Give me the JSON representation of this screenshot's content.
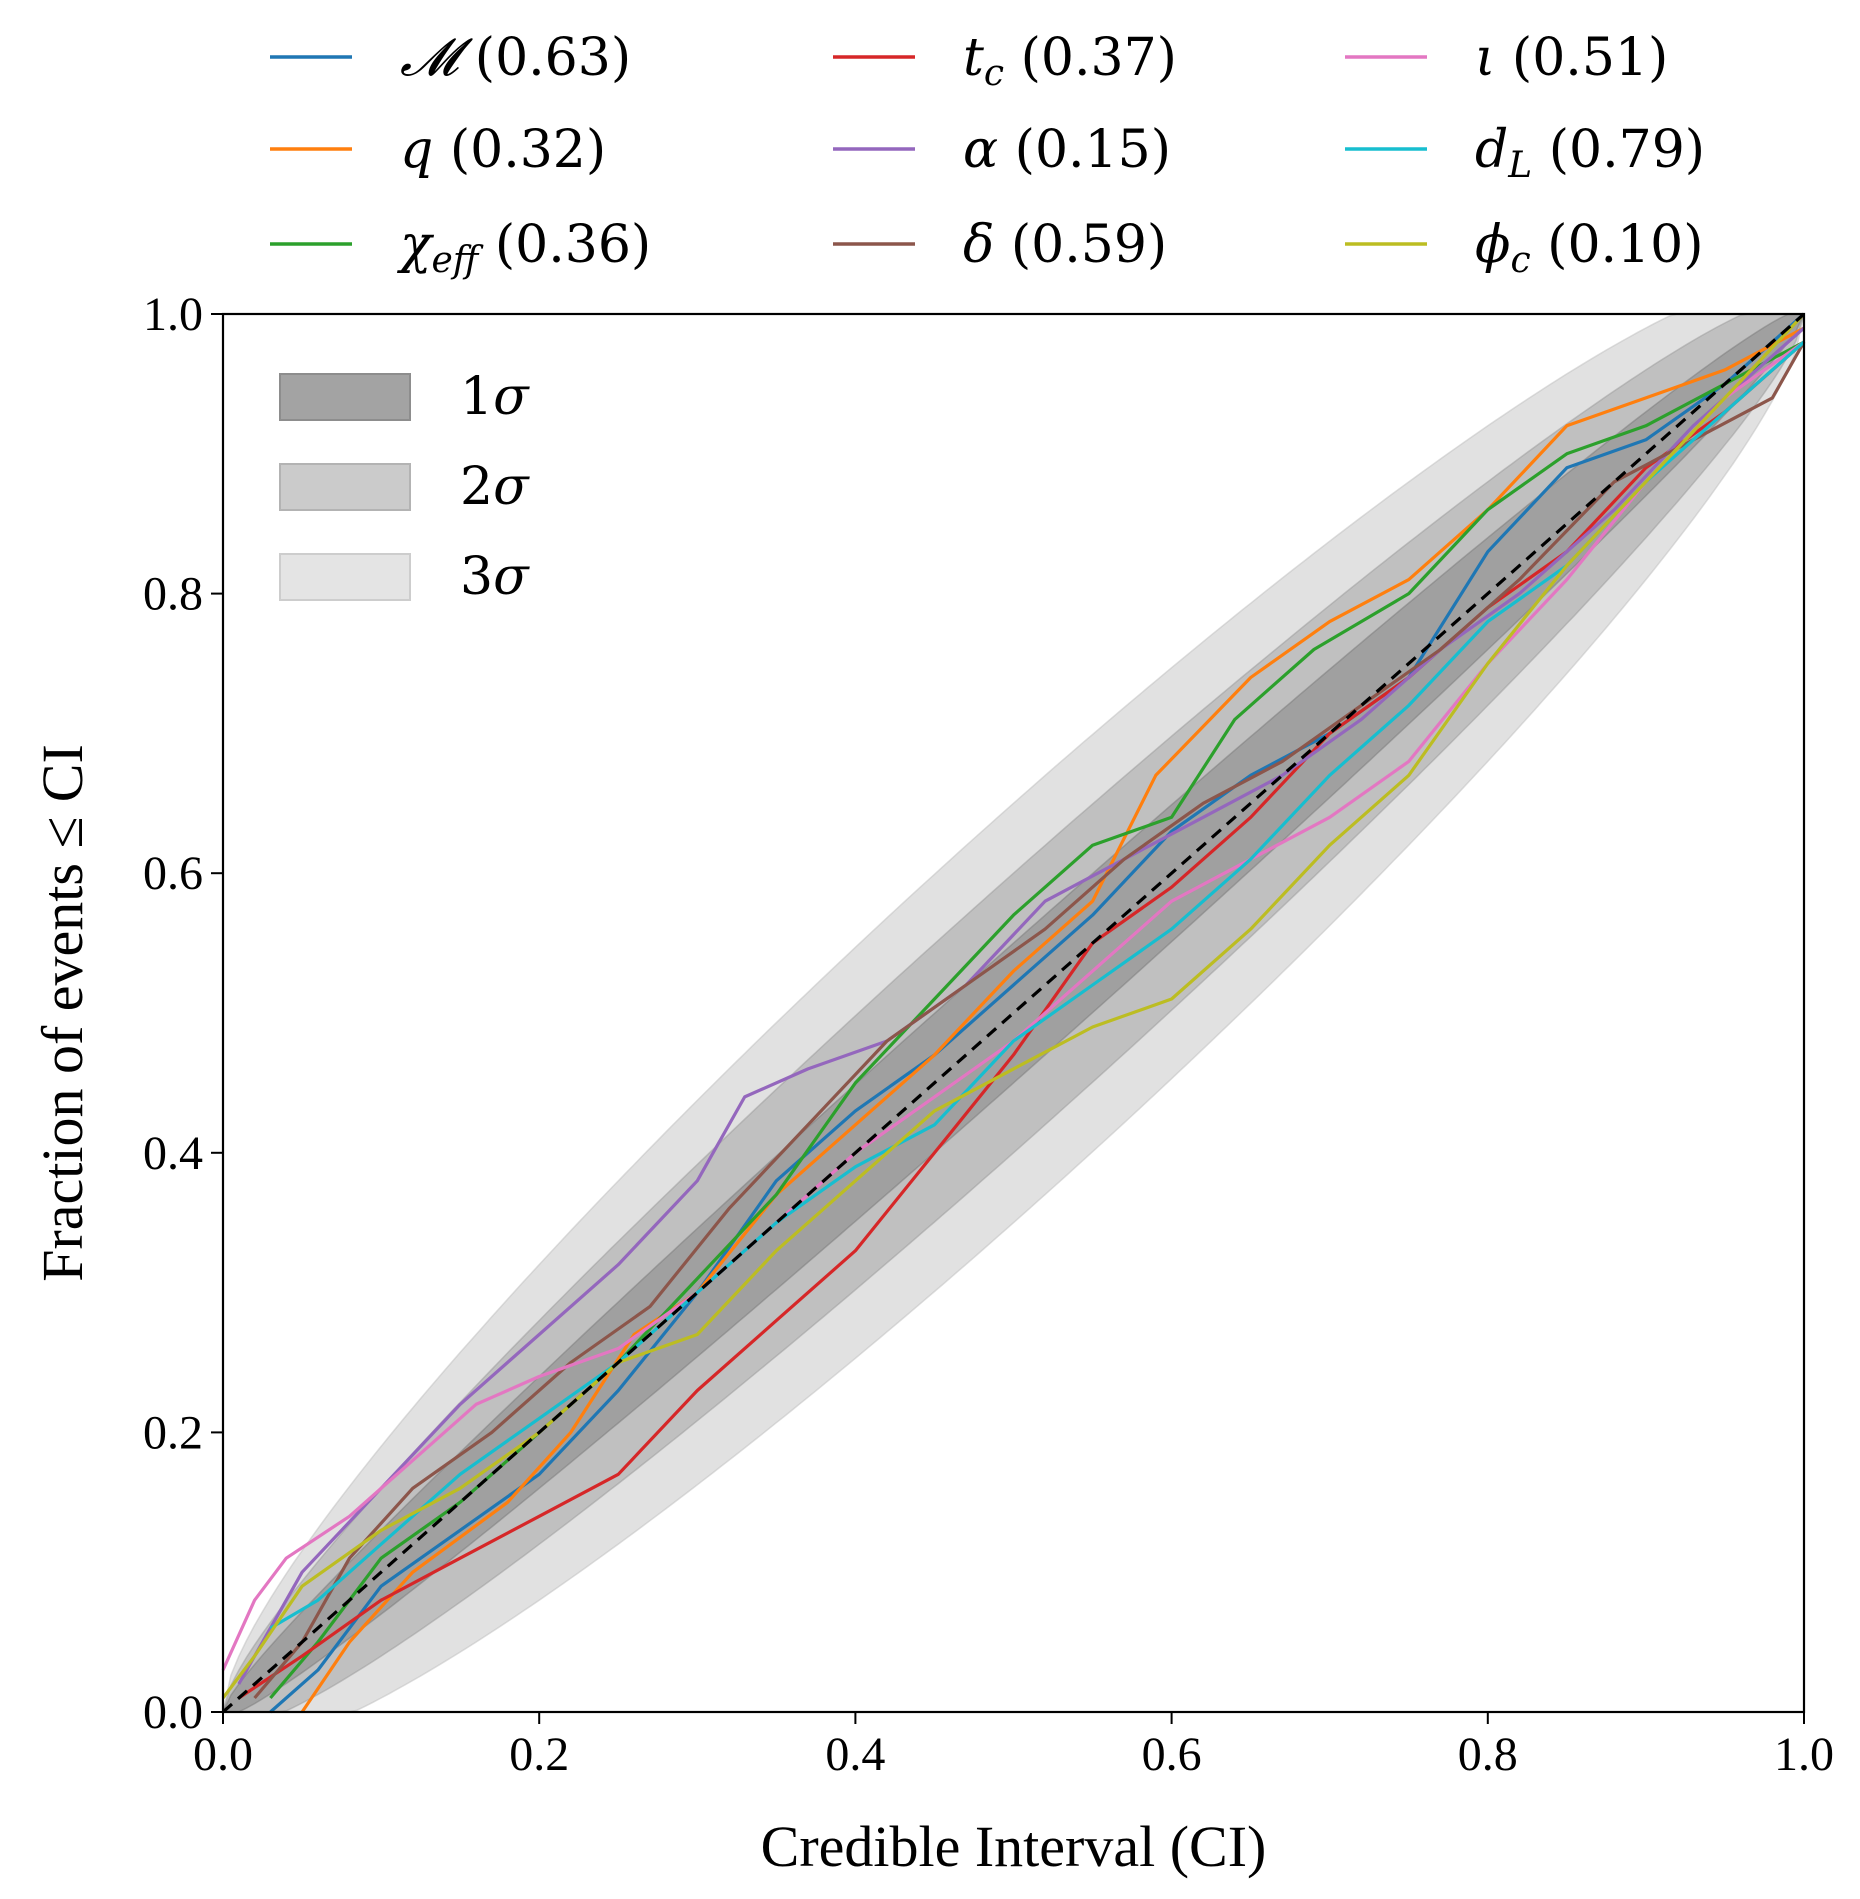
{
  "chart_data": {
    "type": "line",
    "title": "",
    "xlabel": "Credible Interval (CI)",
    "ylabel": "Fraction of events ≤ CI",
    "xlim": [
      0.0,
      1.0
    ],
    "ylim": [
      0.0,
      1.0
    ],
    "x_ticks": [
      "0.0",
      "0.2",
      "0.4",
      "0.6",
      "0.8",
      "1.0"
    ],
    "y_ticks": [
      "0.0",
      "0.2",
      "0.4",
      "0.6",
      "0.8",
      "1.0"
    ],
    "grid": false,
    "legend_placement": "above plot, 3 columns",
    "confidence_bands": [
      {
        "name": "1σ",
        "label": "1",
        "sigma": 1,
        "color": "#7a7a7a",
        "opacity": 0.45
      },
      {
        "name": "2σ",
        "label": "2",
        "sigma": 2,
        "color": "#9a9a9a",
        "opacity": 0.45
      },
      {
        "name": "3σ",
        "label": "3",
        "sigma": 3,
        "color": "#bdbdbd",
        "opacity": 0.45
      }
    ],
    "band_n_events": 100,
    "reference_line": {
      "name": "diagonal",
      "style": "dashed",
      "color": "#000000",
      "points": [
        [
          0,
          0
        ],
        [
          1,
          1
        ]
      ]
    },
    "series": [
      {
        "id": "chirp-mass",
        "symbol": "𝓜",
        "sub": "",
        "pvalue": "(0.63)",
        "color": "#1f77b4",
        "points": [
          [
            0.03,
            0.0
          ],
          [
            0.06,
            0.03
          ],
          [
            0.1,
            0.09
          ],
          [
            0.15,
            0.13
          ],
          [
            0.2,
            0.17
          ],
          [
            0.25,
            0.23
          ],
          [
            0.3,
            0.3
          ],
          [
            0.35,
            0.38
          ],
          [
            0.4,
            0.43
          ],
          [
            0.45,
            0.47
          ],
          [
            0.5,
            0.52
          ],
          [
            0.55,
            0.57
          ],
          [
            0.6,
            0.63
          ],
          [
            0.65,
            0.67
          ],
          [
            0.7,
            0.7
          ],
          [
            0.75,
            0.74
          ],
          [
            0.8,
            0.83
          ],
          [
            0.85,
            0.89
          ],
          [
            0.9,
            0.91
          ],
          [
            0.95,
            0.95
          ],
          [
            1.0,
            1.0
          ]
        ]
      },
      {
        "id": "q",
        "symbol": "q",
        "sub": "",
        "pvalue": "(0.32)",
        "color": "#ff7f0e",
        "points": [
          [
            0.05,
            0.0
          ],
          [
            0.08,
            0.05
          ],
          [
            0.12,
            0.1
          ],
          [
            0.18,
            0.15
          ],
          [
            0.22,
            0.2
          ],
          [
            0.26,
            0.27
          ],
          [
            0.3,
            0.3
          ],
          [
            0.35,
            0.37
          ],
          [
            0.4,
            0.42
          ],
          [
            0.45,
            0.47
          ],
          [
            0.5,
            0.53
          ],
          [
            0.55,
            0.58
          ],
          [
            0.59,
            0.67
          ],
          [
            0.65,
            0.74
          ],
          [
            0.7,
            0.78
          ],
          [
            0.75,
            0.81
          ],
          [
            0.8,
            0.86
          ],
          [
            0.85,
            0.92
          ],
          [
            0.9,
            0.94
          ],
          [
            0.95,
            0.96
          ],
          [
            1.0,
            0.99
          ]
        ]
      },
      {
        "id": "chi-eff",
        "symbol": "χ",
        "sub": "eff",
        "pvalue": "(0.36)",
        "color": "#2ca02c",
        "points": [
          [
            0.03,
            0.01
          ],
          [
            0.06,
            0.05
          ],
          [
            0.1,
            0.11
          ],
          [
            0.15,
            0.15
          ],
          [
            0.2,
            0.2
          ],
          [
            0.25,
            0.25
          ],
          [
            0.3,
            0.31
          ],
          [
            0.35,
            0.37
          ],
          [
            0.4,
            0.45
          ],
          [
            0.45,
            0.51
          ],
          [
            0.5,
            0.57
          ],
          [
            0.55,
            0.62
          ],
          [
            0.6,
            0.64
          ],
          [
            0.64,
            0.71
          ],
          [
            0.69,
            0.76
          ],
          [
            0.75,
            0.8
          ],
          [
            0.8,
            0.86
          ],
          [
            0.85,
            0.9
          ],
          [
            0.9,
            0.92
          ],
          [
            0.95,
            0.95
          ],
          [
            1.0,
            0.98
          ]
        ]
      },
      {
        "id": "tc",
        "symbol": "t",
        "sub": "c",
        "pvalue": "(0.37)",
        "color": "#d62728",
        "points": [
          [
            0.01,
            0.01
          ],
          [
            0.05,
            0.04
          ],
          [
            0.1,
            0.08
          ],
          [
            0.15,
            0.11
          ],
          [
            0.2,
            0.14
          ],
          [
            0.25,
            0.17
          ],
          [
            0.3,
            0.23
          ],
          [
            0.35,
            0.28
          ],
          [
            0.4,
            0.33
          ],
          [
            0.45,
            0.4
          ],
          [
            0.5,
            0.47
          ],
          [
            0.55,
            0.55
          ],
          [
            0.6,
            0.59
          ],
          [
            0.65,
            0.64
          ],
          [
            0.7,
            0.7
          ],
          [
            0.75,
            0.74
          ],
          [
            0.8,
            0.79
          ],
          [
            0.85,
            0.83
          ],
          [
            0.9,
            0.89
          ],
          [
            0.95,
            0.93
          ],
          [
            1.0,
            0.98
          ]
        ]
      },
      {
        "id": "alpha",
        "symbol": "α",
        "sub": "",
        "pvalue": "(0.15)",
        "color": "#9467bd",
        "points": [
          [
            0.01,
            0.02
          ],
          [
            0.05,
            0.1
          ],
          [
            0.1,
            0.16
          ],
          [
            0.15,
            0.22
          ],
          [
            0.2,
            0.27
          ],
          [
            0.25,
            0.32
          ],
          [
            0.3,
            0.38
          ],
          [
            0.33,
            0.44
          ],
          [
            0.37,
            0.46
          ],
          [
            0.42,
            0.48
          ],
          [
            0.47,
            0.52
          ],
          [
            0.52,
            0.58
          ],
          [
            0.57,
            0.61
          ],
          [
            0.62,
            0.64
          ],
          [
            0.67,
            0.67
          ],
          [
            0.72,
            0.71
          ],
          [
            0.77,
            0.76
          ],
          [
            0.82,
            0.8
          ],
          [
            0.88,
            0.86
          ],
          [
            0.93,
            0.92
          ],
          [
            1.0,
            0.99
          ]
        ]
      },
      {
        "id": "delta",
        "symbol": "δ",
        "sub": "",
        "pvalue": "(0.59)",
        "color": "#8c564b",
        "points": [
          [
            0.02,
            0.01
          ],
          [
            0.05,
            0.05
          ],
          [
            0.08,
            0.11
          ],
          [
            0.12,
            0.16
          ],
          [
            0.17,
            0.2
          ],
          [
            0.22,
            0.25
          ],
          [
            0.27,
            0.29
          ],
          [
            0.32,
            0.36
          ],
          [
            0.37,
            0.42
          ],
          [
            0.42,
            0.48
          ],
          [
            0.47,
            0.52
          ],
          [
            0.52,
            0.56
          ],
          [
            0.57,
            0.61
          ],
          [
            0.62,
            0.65
          ],
          [
            0.67,
            0.68
          ],
          [
            0.72,
            0.72
          ],
          [
            0.77,
            0.76
          ],
          [
            0.82,
            0.81
          ],
          [
            0.88,
            0.88
          ],
          [
            0.93,
            0.91
          ],
          [
            0.98,
            0.94
          ],
          [
            1.0,
            0.98
          ]
        ]
      },
      {
        "id": "iota",
        "symbol": "ι",
        "sub": "",
        "pvalue": "(0.51)",
        "color": "#e377c2",
        "points": [
          [
            0.0,
            0.03
          ],
          [
            0.02,
            0.08
          ],
          [
            0.04,
            0.11
          ],
          [
            0.08,
            0.14
          ],
          [
            0.12,
            0.18
          ],
          [
            0.16,
            0.22
          ],
          [
            0.2,
            0.24
          ],
          [
            0.25,
            0.26
          ],
          [
            0.3,
            0.3
          ],
          [
            0.35,
            0.35
          ],
          [
            0.4,
            0.4
          ],
          [
            0.45,
            0.44
          ],
          [
            0.5,
            0.48
          ],
          [
            0.55,
            0.53
          ],
          [
            0.6,
            0.58
          ],
          [
            0.65,
            0.61
          ],
          [
            0.7,
            0.64
          ],
          [
            0.75,
            0.68
          ],
          [
            0.8,
            0.75
          ],
          [
            0.85,
            0.81
          ],
          [
            0.9,
            0.88
          ],
          [
            0.95,
            0.94
          ],
          [
            1.0,
            0.98
          ]
        ]
      },
      {
        "id": "dL",
        "symbol": "d",
        "sub": "L",
        "pvalue": "(0.79)",
        "color": "#17becf",
        "points": [
          [
            0.03,
            0.06
          ],
          [
            0.06,
            0.08
          ],
          [
            0.1,
            0.12
          ],
          [
            0.15,
            0.17
          ],
          [
            0.2,
            0.21
          ],
          [
            0.25,
            0.25
          ],
          [
            0.3,
            0.3
          ],
          [
            0.35,
            0.35
          ],
          [
            0.4,
            0.39
          ],
          [
            0.45,
            0.42
          ],
          [
            0.5,
            0.48
          ],
          [
            0.55,
            0.52
          ],
          [
            0.6,
            0.56
          ],
          [
            0.65,
            0.61
          ],
          [
            0.7,
            0.67
          ],
          [
            0.75,
            0.72
          ],
          [
            0.8,
            0.78
          ],
          [
            0.85,
            0.82
          ],
          [
            0.9,
            0.88
          ],
          [
            0.95,
            0.93
          ],
          [
            1.0,
            0.98
          ]
        ]
      },
      {
        "id": "phi-c",
        "symbol": "ϕ",
        "sub": "c",
        "pvalue": "(0.10)",
        "color": "#bcbd22",
        "points": [
          [
            0.0,
            0.01
          ],
          [
            0.02,
            0.04
          ],
          [
            0.05,
            0.09
          ],
          [
            0.1,
            0.13
          ],
          [
            0.15,
            0.16
          ],
          [
            0.2,
            0.2
          ],
          [
            0.25,
            0.25
          ],
          [
            0.3,
            0.27
          ],
          [
            0.35,
            0.33
          ],
          [
            0.4,
            0.38
          ],
          [
            0.45,
            0.43
          ],
          [
            0.5,
            0.46
          ],
          [
            0.55,
            0.49
          ],
          [
            0.6,
            0.51
          ],
          [
            0.65,
            0.56
          ],
          [
            0.7,
            0.62
          ],
          [
            0.75,
            0.67
          ],
          [
            0.8,
            0.75
          ],
          [
            0.85,
            0.82
          ],
          [
            0.9,
            0.88
          ],
          [
            0.95,
            0.94
          ],
          [
            1.0,
            1.0
          ]
        ]
      }
    ]
  }
}
